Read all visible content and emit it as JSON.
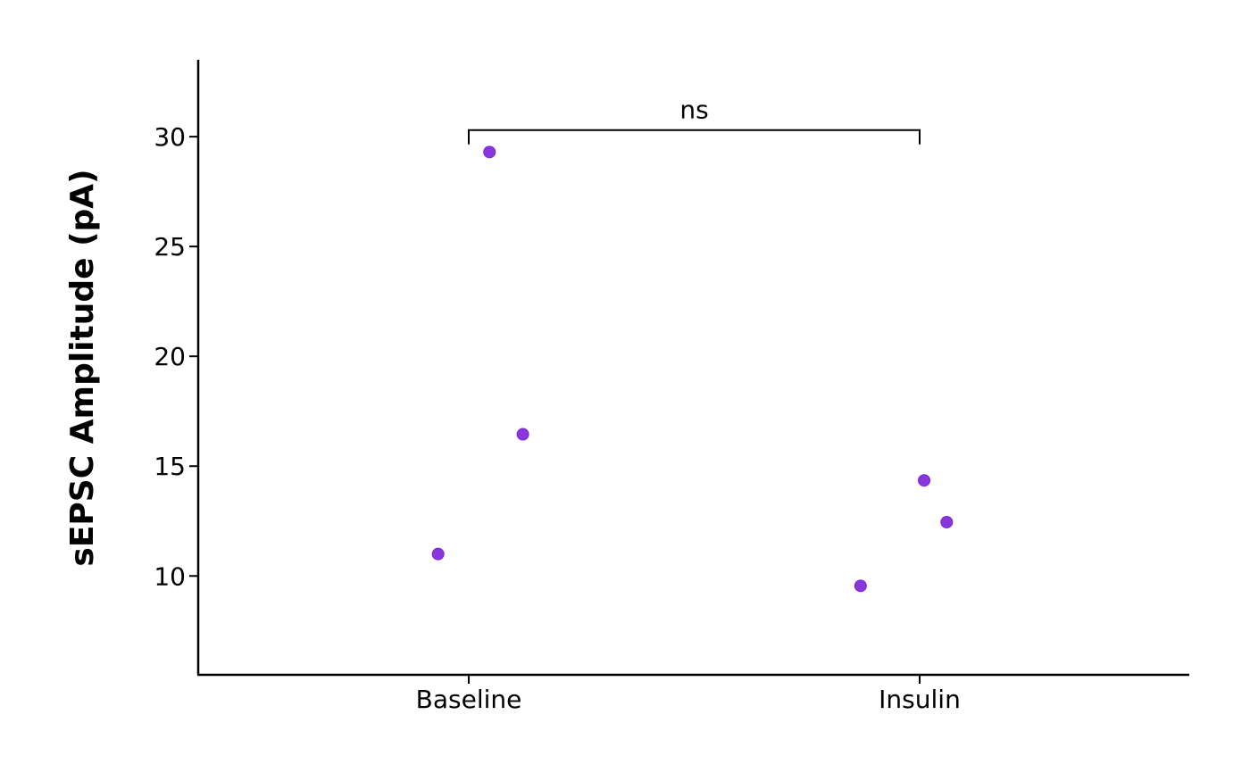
{
  "chart_data": {
    "type": "scatter",
    "title": "",
    "xlabel": "",
    "ylabel": "sEPSC Amplitude (pA)",
    "categories": [
      "Baseline",
      "Insulin"
    ],
    "ylim": [
      5.5,
      33.5
    ],
    "yticks": [
      10,
      15,
      20,
      25,
      30
    ],
    "grid": false,
    "point_color": "#7B22D6",
    "series": [
      {
        "points": [
          {
            "category": "Baseline",
            "jitter": 0.046,
            "y": 29.3
          },
          {
            "category": "Baseline",
            "jitter": 0.12,
            "y": 16.45
          },
          {
            "category": "Baseline",
            "jitter": -0.068,
            "y": 11.0
          },
          {
            "category": "Insulin",
            "jitter": 0.01,
            "y": 14.35
          },
          {
            "category": "Insulin",
            "jitter": 0.06,
            "y": 12.45
          },
          {
            "category": "Insulin",
            "jitter": -0.131,
            "y": 9.55
          }
        ]
      }
    ],
    "annotations": [
      {
        "type": "significance-bracket",
        "from": "Baseline",
        "to": "Insulin",
        "label": "ns",
        "y": 30.3
      }
    ]
  }
}
